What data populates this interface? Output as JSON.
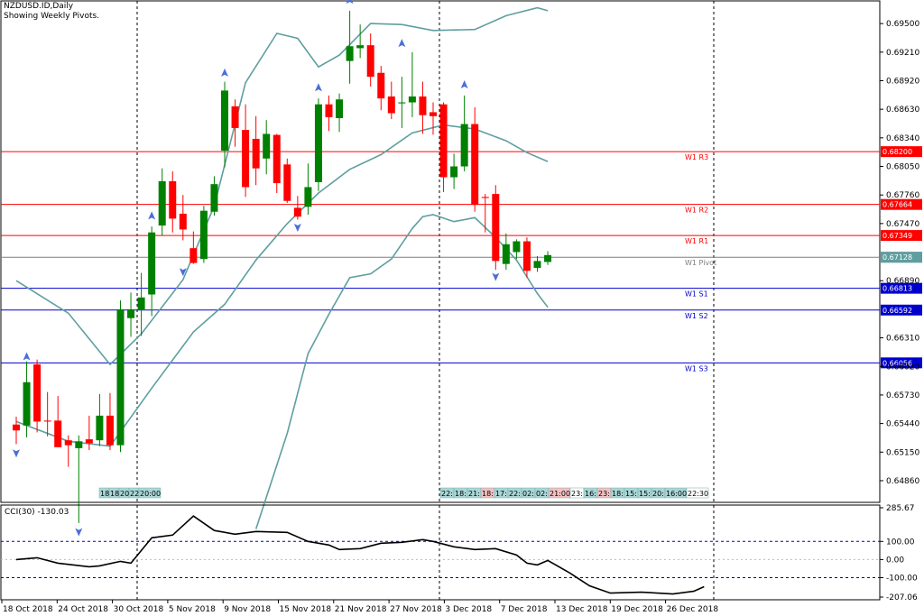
{
  "header": {
    "symbol_line": "NZDUSD.ID,Daily",
    "subtitle": "Showing Weekly Pivots."
  },
  "chart_data": {
    "type": "candlestick",
    "price_axis": {
      "range": [
        0.6464,
        0.6973
      ],
      "ticks": [
        "0.69500",
        "0.69210",
        "0.68920",
        "0.68630",
        "0.68340",
        "0.68050",
        "0.67760",
        "0.67470",
        "0.66890",
        "0.66310",
        "0.66020",
        "0.65730",
        "0.65440",
        "0.65150",
        "0.64860"
      ]
    },
    "date_labels": [
      "18 Oct 2018",
      "24 Oct 2018",
      "30 Oct 2018",
      "5 Nov 2018",
      "9 Nov 2018",
      "15 Nov 2018",
      "21 Nov 2018",
      "27 Nov 2018",
      "3 Dec 2018",
      "7 Dec 2018",
      "13 Dec 2018",
      "19 Dec 2018",
      "26 Dec 2018"
    ],
    "candles": [
      {
        "o": 0.6543,
        "h": 0.6551,
        "l": 0.6523,
        "c": 0.6537
      },
      {
        "o": 0.6542,
        "h": 0.6607,
        "l": 0.653,
        "c": 0.6586
      },
      {
        "o": 0.6604,
        "h": 0.6609,
        "l": 0.6535,
        "c": 0.6546
      },
      {
        "o": 0.6547,
        "h": 0.6576,
        "l": 0.6531,
        "c": 0.6546
      },
      {
        "o": 0.6547,
        "h": 0.6572,
        "l": 0.6523,
        "c": 0.652
      },
      {
        "o": 0.6527,
        "h": 0.6532,
        "l": 0.65,
        "c": 0.6522
      },
      {
        "o": 0.6519,
        "h": 0.6532,
        "l": 0.6443,
        "c": 0.6526
      },
      {
        "o": 0.6528,
        "h": 0.6552,
        "l": 0.6517,
        "c": 0.6524
      },
      {
        "o": 0.6527,
        "h": 0.6574,
        "l": 0.6521,
        "c": 0.6552
      },
      {
        "o": 0.6552,
        "h": 0.6575,
        "l": 0.6517,
        "c": 0.6522
      },
      {
        "o": 0.6522,
        "h": 0.6669,
        "l": 0.6515,
        "c": 0.666
      },
      {
        "o": 0.6651,
        "h": 0.6677,
        "l": 0.6632,
        "c": 0.666
      },
      {
        "o": 0.6659,
        "h": 0.6697,
        "l": 0.6633,
        "c": 0.6672
      },
      {
        "o": 0.6675,
        "h": 0.6744,
        "l": 0.6653,
        "c": 0.6738
      },
      {
        "o": 0.6745,
        "h": 0.6803,
        "l": 0.6735,
        "c": 0.679
      },
      {
        "o": 0.679,
        "h": 0.68,
        "l": 0.6738,
        "c": 0.6752
      },
      {
        "o": 0.6757,
        "h": 0.6776,
        "l": 0.673,
        "c": 0.6741
      },
      {
        "o": 0.6722,
        "h": 0.6739,
        "l": 0.6706,
        "c": 0.6707
      },
      {
        "o": 0.6711,
        "h": 0.6765,
        "l": 0.6707,
        "c": 0.676
      },
      {
        "o": 0.6759,
        "h": 0.6795,
        "l": 0.6755,
        "c": 0.6787
      },
      {
        "o": 0.6821,
        "h": 0.6891,
        "l": 0.6804,
        "c": 0.6882
      },
      {
        "o": 0.6866,
        "h": 0.6873,
        "l": 0.6825,
        "c": 0.6844
      },
      {
        "o": 0.6842,
        "h": 0.6868,
        "l": 0.6774,
        "c": 0.6784
      },
      {
        "o": 0.6833,
        "h": 0.6856,
        "l": 0.6786,
        "c": 0.6803
      },
      {
        "o": 0.6813,
        "h": 0.6852,
        "l": 0.6797,
        "c": 0.6838
      },
      {
        "o": 0.6837,
        "h": 0.6838,
        "l": 0.6778,
        "c": 0.6788
      },
      {
        "o": 0.6807,
        "h": 0.6813,
        "l": 0.6768,
        "c": 0.677
      },
      {
        "o": 0.6763,
        "h": 0.6775,
        "l": 0.6751,
        "c": 0.6754
      },
      {
        "o": 0.6764,
        "h": 0.6808,
        "l": 0.6756,
        "c": 0.6784
      },
      {
        "o": 0.6789,
        "h": 0.6874,
        "l": 0.678,
        "c": 0.6868
      },
      {
        "o": 0.6868,
        "h": 0.6877,
        "l": 0.6841,
        "c": 0.6855
      },
      {
        "o": 0.6854,
        "h": 0.6879,
        "l": 0.684,
        "c": 0.6873
      },
      {
        "o": 0.6912,
        "h": 0.6963,
        "l": 0.6889,
        "c": 0.6927
      },
      {
        "o": 0.6925,
        "h": 0.6949,
        "l": 0.6915,
        "c": 0.6928
      },
      {
        "o": 0.6928,
        "h": 0.694,
        "l": 0.6886,
        "c": 0.6896
      },
      {
        "o": 0.69,
        "h": 0.6907,
        "l": 0.6862,
        "c": 0.6874
      },
      {
        "o": 0.6876,
        "h": 0.6891,
        "l": 0.6853,
        "c": 0.6859
      },
      {
        "o": 0.6869,
        "h": 0.6896,
        "l": 0.6844,
        "c": 0.687
      },
      {
        "o": 0.687,
        "h": 0.6921,
        "l": 0.6855,
        "c": 0.6876
      },
      {
        "o": 0.6876,
        "h": 0.6891,
        "l": 0.6838,
        "c": 0.6857
      },
      {
        "o": 0.686,
        "h": 0.687,
        "l": 0.6837,
        "c": 0.6856
      },
      {
        "o": 0.6868,
        "h": 0.687,
        "l": 0.6779,
        "c": 0.6794
      },
      {
        "o": 0.6794,
        "h": 0.6818,
        "l": 0.6782,
        "c": 0.6805
      },
      {
        "o": 0.6805,
        "h": 0.6877,
        "l": 0.68,
        "c": 0.6848
      },
      {
        "o": 0.6848,
        "h": 0.6865,
        "l": 0.6759,
        "c": 0.6766
      },
      {
        "o": 0.6774,
        "h": 0.6777,
        "l": 0.6738,
        "c": 0.6773
      },
      {
        "o": 0.6777,
        "h": 0.6786,
        "l": 0.67,
        "c": 0.6709
      },
      {
        "o": 0.6706,
        "h": 0.6737,
        "l": 0.67,
        "c": 0.6726
      },
      {
        "o": 0.6718,
        "h": 0.6731,
        "l": 0.6711,
        "c": 0.6729
      },
      {
        "o": 0.6729,
        "h": 0.6733,
        "l": 0.6692,
        "c": 0.6699
      },
      {
        "o": 0.6702,
        "h": 0.6714,
        "l": 0.6698,
        "c": 0.6709
      },
      {
        "o": 0.6708,
        "h": 0.6719,
        "l": 0.6705,
        "c": 0.6715
      }
    ],
    "bollinger_upper": [
      [
        0,
        0.6689
      ],
      [
        5,
        0.6656
      ],
      [
        9,
        0.6604
      ],
      [
        12,
        0.6635
      ],
      [
        16,
        0.669
      ],
      [
        19,
        0.6765
      ],
      [
        22,
        0.689
      ],
      [
        25,
        0.694
      ],
      [
        27,
        0.6935
      ],
      [
        29,
        0.6906
      ],
      [
        31,
        0.6918
      ],
      [
        34,
        0.695
      ],
      [
        37,
        0.6949
      ],
      [
        40,
        0.6943
      ],
      [
        44,
        0.6944
      ],
      [
        47,
        0.6958
      ],
      [
        50,
        0.6966
      ],
      [
        51,
        0.6963
      ]
    ],
    "bollinger_middle": [
      [
        0,
        0.6546
      ],
      [
        5,
        0.6526
      ],
      [
        9,
        0.6521
      ],
      [
        13,
        0.658
      ],
      [
        17,
        0.6637
      ],
      [
        20,
        0.6665
      ],
      [
        23,
        0.671
      ],
      [
        26,
        0.6747
      ],
      [
        29,
        0.6778
      ],
      [
        32,
        0.6802
      ],
      [
        35,
        0.6817
      ],
      [
        38,
        0.6839
      ],
      [
        41,
        0.6847
      ],
      [
        44,
        0.6843
      ],
      [
        47,
        0.6831
      ],
      [
        49,
        0.6819
      ],
      [
        51,
        0.681
      ]
    ],
    "bollinger_lower": [
      [
        23,
        0.6437
      ],
      [
        26,
        0.6534
      ],
      [
        28,
        0.6615
      ],
      [
        30,
        0.6655
      ],
      [
        32,
        0.6692
      ],
      [
        34,
        0.6696
      ],
      [
        36,
        0.6711
      ],
      [
        38,
        0.6742
      ],
      [
        39,
        0.6754
      ],
      [
        40,
        0.6756
      ],
      [
        42,
        0.6749
      ],
      [
        44,
        0.6753
      ],
      [
        46,
        0.6733
      ],
      [
        48,
        0.671
      ],
      [
        50,
        0.6676
      ],
      [
        51,
        0.6662
      ]
    ],
    "pivot_levels": [
      {
        "name": "W1 R3",
        "value": 0.682,
        "label": "0.68200",
        "color": "#ff0000"
      },
      {
        "name": "W1 R2",
        "value": 0.67664,
        "label": "0.67664",
        "color": "#ff0000"
      },
      {
        "name": "W1 R1",
        "value": 0.67349,
        "label": "0.67349",
        "color": "#ff0000"
      },
      {
        "name": "W1 Pivot",
        "value": 0.67128,
        "label": "0.67128",
        "color": "#7f7f7f"
      },
      {
        "name": "W1 S1",
        "value": 0.66813,
        "label": "0.66813",
        "color": "#0000cd"
      },
      {
        "name": "W1 S2",
        "value": 0.66592,
        "label": "0.66592",
        "color": "#0000cd"
      },
      {
        "name": "W1 S3",
        "value": 0.66056,
        "label": "0.66056",
        "color": "#0000cd"
      }
    ],
    "current_price": {
      "value": 0.67128,
      "label": "0.67128"
    },
    "fractals_up": [
      [
        1,
        0.661
      ],
      [
        13,
        0.6753
      ],
      [
        20,
        0.6898
      ],
      [
        29,
        0.6883
      ],
      [
        32,
        0.6972
      ],
      [
        37,
        0.6928
      ],
      [
        43,
        0.6886
      ]
    ],
    "fractals_down": [
      [
        0,
        0.6516
      ],
      [
        6,
        0.6436
      ],
      [
        16,
        0.67
      ],
      [
        27,
        0.6745
      ],
      [
        46,
        0.6695
      ]
    ],
    "session_tags_left": [
      "18:",
      "18:",
      "20:",
      "22:",
      "20:00"
    ],
    "session_tags_right": [
      {
        "t": "22:",
        "c": "#aad6d6"
      },
      {
        "t": "18:",
        "c": "#aad6d6"
      },
      {
        "t": "21:",
        "c": "#aad6d6"
      },
      {
        "t": "18:",
        "c": "#f4c0c0"
      },
      {
        "t": "17:",
        "c": "#aad6d6"
      },
      {
        "t": "22:",
        "c": "#aad6d6"
      },
      {
        "t": "02:",
        "c": "#aad6d6"
      },
      {
        "t": "02:",
        "c": "#aad6d6"
      },
      {
        "t": "21:00",
        "c": "#f4c0c0"
      },
      {
        "t": "23:",
        "c": "#ffffff"
      },
      {
        "t": "16:",
        "c": "#aad6d6"
      },
      {
        "t": "23:",
        "c": "#f4c0c0"
      },
      {
        "t": "18:",
        "c": "#aad6d6"
      },
      {
        "t": "15:",
        "c": "#aad6d6"
      },
      {
        "t": "15:",
        "c": "#aad6d6"
      },
      {
        "t": "20:",
        "c": "#aad6d6"
      },
      {
        "t": "16:00",
        "c": "#aad6d6"
      },
      {
        "t": "22:30",
        "c": "#ffffff"
      }
    ],
    "cci": {
      "label": "CCI(30) -130.03",
      "range": [
        -207.06,
        285.67
      ],
      "ticks": [
        "285.67",
        "100.00",
        "0.00",
        "-100.00",
        "-207.06"
      ],
      "levels": [
        100,
        -100
      ],
      "values": [
        [
          0,
          0
        ],
        [
          2,
          10
        ],
        [
          4,
          -20
        ],
        [
          7,
          -40
        ],
        [
          8,
          -35
        ],
        [
          10,
          -10
        ],
        [
          11,
          -20
        ],
        [
          12,
          50
        ],
        [
          13,
          120
        ],
        [
          15,
          135
        ],
        [
          17,
          240
        ],
        [
          19,
          160
        ],
        [
          21,
          140
        ],
        [
          23,
          155
        ],
        [
          26,
          150
        ],
        [
          28,
          100
        ],
        [
          30,
          80
        ],
        [
          31,
          55
        ],
        [
          33,
          60
        ],
        [
          35,
          90
        ],
        [
          37,
          95
        ],
        [
          39,
          110
        ],
        [
          40,
          100
        ],
        [
          42,
          70
        ],
        [
          44,
          55
        ],
        [
          46,
          60
        ],
        [
          48,
          25
        ],
        [
          49,
          -20
        ],
        [
          50,
          -30
        ],
        [
          51,
          -5
        ],
        [
          53,
          -70
        ],
        [
          55,
          -145
        ],
        [
          57,
          -185
        ],
        [
          60,
          -180
        ],
        [
          63,
          -190
        ],
        [
          65,
          -175
        ],
        [
          66,
          -150
        ]
      ]
    }
  },
  "colors": {
    "bull": "#008000",
    "bear": "#ff0000",
    "band": "#5f9ea0",
    "cci_line": "#000000",
    "level": "#0000cd"
  }
}
